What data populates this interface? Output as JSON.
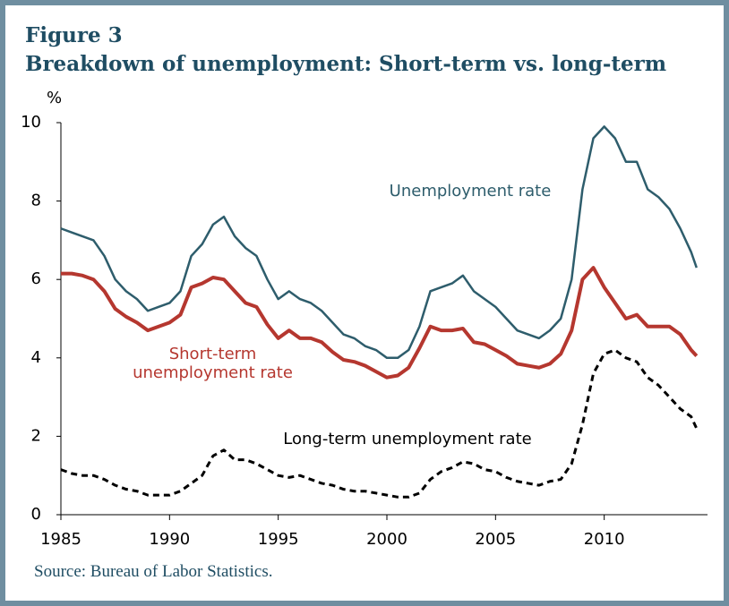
{
  "chart_data": {
    "type": "line",
    "title": "Figure 3",
    "subtitle": "Breakdown of unemployment: Short-term vs. long-term",
    "y_label": "%",
    "source": "Source: Bureau of Labor Statistics.",
    "x": [
      1985,
      1985.5,
      1986,
      1986.5,
      1987,
      1987.5,
      1988,
      1988.5,
      1989,
      1989.5,
      1990,
      1990.5,
      1991,
      1991.5,
      1992,
      1992.5,
      1993,
      1993.5,
      1994,
      1994.5,
      1995,
      1995.5,
      1996,
      1996.5,
      1997,
      1997.5,
      1998,
      1998.5,
      1999,
      1999.5,
      2000,
      2000.5,
      2001,
      2001.5,
      2002,
      2002.5,
      2003,
      2003.5,
      2004,
      2004.5,
      2005,
      2005.5,
      2006,
      2006.5,
      2007,
      2007.5,
      2008,
      2008.5,
      2009,
      2009.5,
      2010,
      2010.5,
      2011,
      2011.5,
      2012,
      2012.5,
      2013,
      2013.5,
      2014,
      2014.25
    ],
    "series": [
      {
        "name": "Unemployment rate",
        "color": "#2e5d6c",
        "dash": false,
        "values": [
          7.3,
          7.2,
          7.1,
          7.0,
          6.6,
          6.0,
          5.7,
          5.5,
          5.2,
          5.3,
          5.4,
          5.7,
          6.6,
          6.9,
          7.4,
          7.6,
          7.1,
          6.8,
          6.6,
          6.0,
          5.5,
          5.7,
          5.5,
          5.4,
          5.2,
          4.9,
          4.6,
          4.5,
          4.3,
          4.2,
          4.0,
          4.0,
          4.2,
          4.8,
          5.7,
          5.8,
          5.9,
          6.1,
          5.7,
          5.5,
          5.3,
          5.0,
          4.7,
          4.6,
          4.5,
          4.7,
          5.0,
          6.0,
          8.3,
          9.6,
          9.9,
          9.6,
          9.0,
          9.0,
          8.3,
          8.1,
          7.8,
          7.3,
          6.7,
          6.3
        ]
      },
      {
        "name": "Short-term unemployment rate",
        "color": "#b5372f",
        "dash": false,
        "values": [
          6.15,
          6.15,
          6.1,
          6.0,
          5.7,
          5.25,
          5.05,
          4.9,
          4.7,
          4.8,
          4.9,
          5.1,
          5.8,
          5.9,
          6.05,
          6.0,
          5.7,
          5.4,
          5.3,
          4.85,
          4.5,
          4.7,
          4.5,
          4.5,
          4.4,
          4.15,
          3.95,
          3.9,
          3.8,
          3.65,
          3.5,
          3.55,
          3.75,
          4.25,
          4.8,
          4.7,
          4.7,
          4.75,
          4.4,
          4.35,
          4.2,
          4.05,
          3.85,
          3.8,
          3.75,
          3.85,
          4.1,
          4.7,
          6.0,
          6.3,
          5.8,
          5.4,
          5.0,
          5.1,
          4.8,
          4.8,
          4.8,
          4.6,
          4.2,
          4.05
        ]
      },
      {
        "name": "Long-term unemployment rate",
        "color": "#000000",
        "dash": true,
        "values": [
          1.15,
          1.05,
          1.0,
          1.0,
          0.9,
          0.75,
          0.65,
          0.6,
          0.5,
          0.5,
          0.5,
          0.6,
          0.8,
          1.0,
          1.5,
          1.65,
          1.4,
          1.4,
          1.3,
          1.15,
          1.0,
          0.95,
          1.0,
          0.9,
          0.8,
          0.75,
          0.65,
          0.6,
          0.6,
          0.55,
          0.5,
          0.45,
          0.45,
          0.55,
          0.9,
          1.1,
          1.2,
          1.35,
          1.3,
          1.15,
          1.1,
          0.95,
          0.85,
          0.8,
          0.75,
          0.85,
          0.9,
          1.3,
          2.3,
          3.6,
          4.1,
          4.2,
          4.0,
          3.9,
          3.5,
          3.3,
          3.0,
          2.7,
          2.5,
          2.2
        ]
      }
    ],
    "xlim": [
      1985,
      2015
    ],
    "xticks": [
      1985,
      1990,
      1995,
      2000,
      2005,
      2010
    ],
    "ylim": [
      0,
      10
    ],
    "yticks": [
      0,
      2,
      4,
      6,
      8,
      10
    ],
    "grid": false
  }
}
